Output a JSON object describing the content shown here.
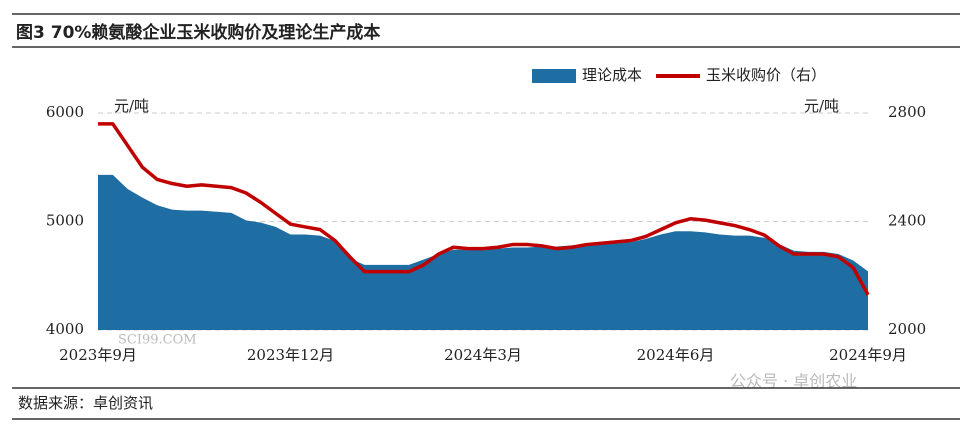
{
  "chart_data": {
    "type": "area_line",
    "title": "图3 70%赖氨酸企业玉米收购价及理论生产成本",
    "y_unit": "元/吨",
    "y2_unit": "元/吨",
    "source": "数据来源：卓创资讯",
    "watermarks": [
      "SCI99.COM",
      "公众号 · 卓创农业"
    ],
    "categories": [
      "2023年9月",
      null,
      null,
      null,
      null,
      null,
      null,
      null,
      null,
      null,
      null,
      null,
      null,
      "2023年12月",
      null,
      null,
      null,
      null,
      null,
      null,
      null,
      null,
      null,
      null,
      null,
      null,
      "2024年3月",
      null,
      null,
      null,
      null,
      null,
      null,
      null,
      null,
      null,
      null,
      null,
      null,
      "2024年6月",
      null,
      null,
      null,
      null,
      null,
      null,
      null,
      null,
      null,
      null,
      null,
      null,
      "2024年9月"
    ],
    "series": [
      {
        "name": "理论成本",
        "color": "#1f6ea3",
        "kind": "area",
        "values": [
          5430,
          5430,
          5300,
          5220,
          5150,
          5110,
          5100,
          5100,
          5090,
          5080,
          5010,
          4990,
          4950,
          4880,
          4880,
          4870,
          4820,
          4660,
          4600,
          4600,
          4600,
          4600,
          4650,
          4700,
          4740,
          4740,
          4740,
          4750,
          4760,
          4760,
          4770,
          4770,
          4780,
          4790,
          4790,
          4800,
          4810,
          4840,
          4880,
          4910,
          4910,
          4900,
          4880,
          4870,
          4870,
          4850,
          4790,
          4730,
          4720,
          4720,
          4700,
          4640,
          4540
        ]
      },
      {
        "name": "玉米收购价（右）",
        "color": "#c00000",
        "kind": "line",
        "axis": "y2",
        "values": [
          2760,
          2760,
          2680,
          2600,
          2555,
          2540,
          2530,
          2535,
          2530,
          2525,
          2505,
          2470,
          2430,
          2390,
          2380,
          2370,
          2330,
          2270,
          2215,
          2215,
          2215,
          2215,
          2240,
          2280,
          2305,
          2300,
          2300,
          2305,
          2315,
          2315,
          2310,
          2300,
          2305,
          2315,
          2320,
          2325,
          2330,
          2345,
          2370,
          2395,
          2410,
          2405,
          2395,
          2385,
          2370,
          2350,
          2310,
          2280,
          2280,
          2280,
          2270,
          2230,
          2130
        ]
      }
    ],
    "ylim": [
      4000,
      6000
    ],
    "yticks": [
      4000,
      5000,
      6000
    ],
    "y2lim": [
      2000,
      2800
    ],
    "y2ticks": [
      2000,
      2400,
      2800
    ],
    "grid": true,
    "legend": "top-right"
  }
}
